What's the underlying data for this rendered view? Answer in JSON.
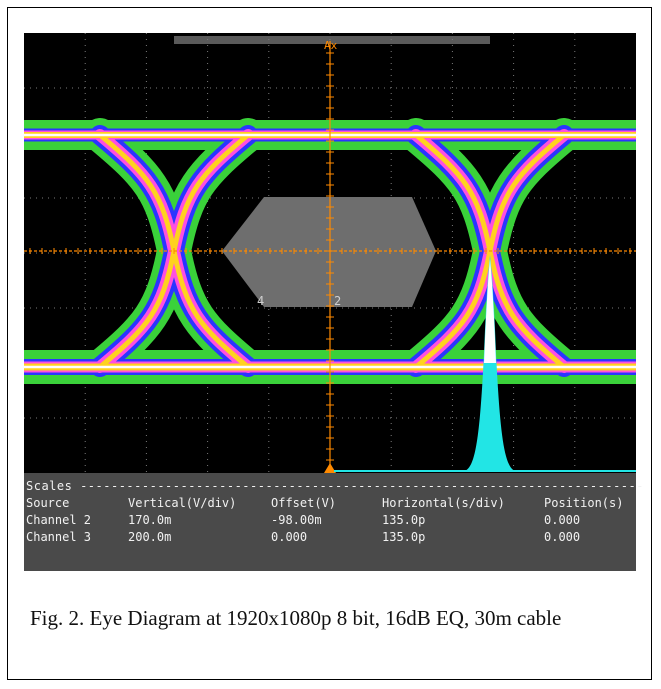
{
  "chart_data": {
    "type": "eye-diagram",
    "cursor_label": "Ax",
    "mask_labels": [
      "4",
      "2"
    ],
    "scales": {
      "title": "Scales",
      "headers": [
        "Source",
        "Vertical(V/div)",
        "Offset(V)",
        "Horizontal(s/div)",
        "Position(s)"
      ],
      "rows": [
        [
          "Channel 2",
          "170.0m",
          "-98.00m",
          "135.0p",
          "0.000"
        ],
        [
          "Channel 3",
          "200.0m",
          "0.000",
          "135.0p",
          "0.000"
        ]
      ]
    },
    "colors": {
      "background": "#000000",
      "grid": "#7a7a7a",
      "outer": "#3ad13a",
      "mid": "#2a35ff",
      "inner": "#ff4fe0",
      "core": "#ffd21f",
      "hot": "#ffffff",
      "marker": "#ff8a00",
      "histogram": "#22e5e5",
      "mask": "#6e6e6e"
    }
  },
  "caption": "Fig. 2. Eye Diagram at 1920x1080p 8 bit, 16dB EQ, 30m cable"
}
